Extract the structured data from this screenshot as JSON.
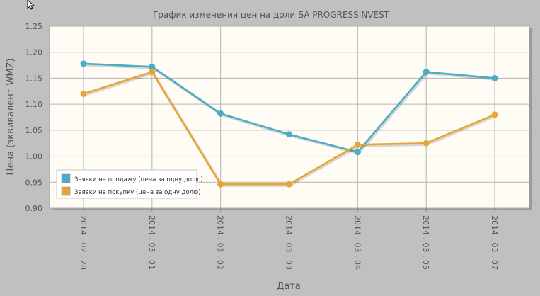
{
  "colors": {
    "page_bg": "#c0c0c0",
    "plot_bg": "#fefcf4",
    "grid": "#b4b4b4",
    "axis_text": "#555555",
    "title_text": "#555555",
    "sell_series": "#4bacc6",
    "buy_series": "#e8a535"
  },
  "chart_data": {
    "type": "line",
    "title": "График изменения цен на доли БА PROGRESSINVEST",
    "xlabel": "Дата",
    "ylabel": "Цена (эквивалент WMZ)",
    "ylim": [
      0.9,
      1.25
    ],
    "yticks": [
      "0.90",
      "0.95",
      "1.00",
      "1.05",
      "1.10",
      "1.15",
      "1.20",
      "1.25"
    ],
    "categories": [
      "2014 . 02 . 28",
      "2014 . 03 . 01",
      "2014 . 03 . 02",
      "2014 . 03 . 03",
      "2014 . 03 . 04",
      "2014 . 03 . 05",
      "2014 . 03 . 07"
    ],
    "grid": true,
    "legend_position": "bottom-left",
    "series": [
      {
        "name": "Заявки на продажу (цена за одну долю)",
        "color": "#4bacc6",
        "values": [
          1.178,
          1.172,
          1.082,
          1.042,
          1.008,
          1.162,
          1.15
        ]
      },
      {
        "name": "Заявки на покупку (цена за одну долю)",
        "color": "#e8a535",
        "values": [
          1.12,
          1.162,
          0.946,
          0.946,
          1.022,
          1.025,
          1.08
        ]
      }
    ]
  }
}
